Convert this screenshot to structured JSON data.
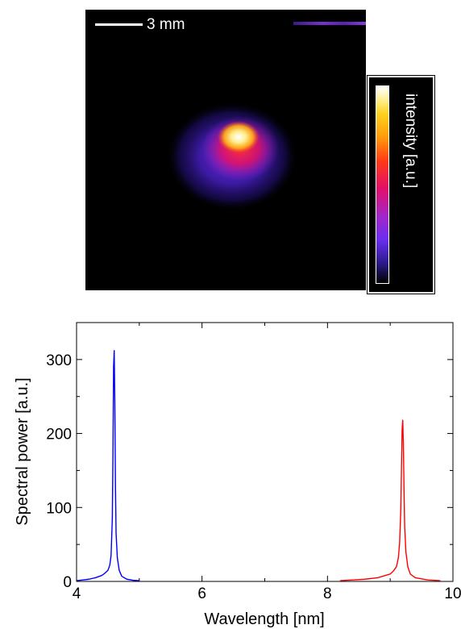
{
  "beam_image": {
    "scale_bar_label": "3 mm",
    "colorbar_label": "intensity [a.u.]"
  },
  "chart_data": {
    "type": "line",
    "title": "",
    "xlabel": "Wavelength [nm]",
    "ylabel": "Spectral power [a.u.]",
    "xlim": [
      4,
      10
    ],
    "ylim": [
      0,
      350
    ],
    "xticks": [
      4,
      6,
      8,
      10
    ],
    "yticks": [
      0,
      100,
      200,
      300
    ],
    "grid": false,
    "series": [
      {
        "color": "#0000ff",
        "x": [
          4.0,
          4.1,
          4.2,
          4.3,
          4.4,
          4.45,
          4.5,
          4.53,
          4.55,
          4.57,
          4.58,
          4.59,
          4.6,
          4.61,
          4.62,
          4.63,
          4.65,
          4.68,
          4.72,
          4.8,
          4.9,
          5.0
        ],
        "y": [
          1,
          2,
          3,
          5,
          8,
          11,
          15,
          22,
          35,
          85,
          170,
          290,
          312,
          240,
          130,
          65,
          32,
          15,
          7,
          3,
          1.5,
          1
        ]
      },
      {
        "color": "#ff0000",
        "x": [
          8.2,
          8.4,
          8.6,
          8.8,
          9.0,
          9.05,
          9.1,
          9.13,
          9.15,
          9.17,
          9.18,
          9.19,
          9.2,
          9.21,
          9.22,
          9.23,
          9.25,
          9.28,
          9.32,
          9.4,
          9.6,
          9.8
        ],
        "y": [
          1,
          2,
          3,
          5,
          10,
          14,
          20,
          32,
          52,
          100,
          155,
          205,
          218,
          185,
          125,
          75,
          40,
          20,
          10,
          5,
          2,
          1
        ]
      }
    ]
  }
}
